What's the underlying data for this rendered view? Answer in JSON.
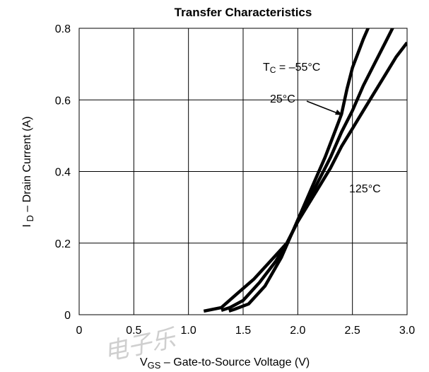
{
  "chart_data": {
    "type": "line",
    "title": "Transfer Characteristics",
    "xlabel": "V_GS – Gate-to-Source Voltage (V)",
    "ylabel": "I_D – Drain Current (A)",
    "xlim": [
      0,
      3.0
    ],
    "ylim": [
      0,
      0.8
    ],
    "x_ticks": [
      "0",
      "0.5",
      "1.0",
      "1.5",
      "2.0",
      "2.5",
      "3.0"
    ],
    "y_ticks": [
      "0",
      "0.2",
      "0.4",
      "0.6",
      "0.8"
    ],
    "x_tick_values": [
      0,
      0.5,
      1.0,
      1.5,
      2.0,
      2.5,
      3.0
    ],
    "y_tick_values": [
      0,
      0.2,
      0.4,
      0.6,
      0.8
    ],
    "grid": true,
    "series": [
      {
        "name": "TC = –55°C",
        "x": [
          1.37,
          1.42,
          1.55,
          1.7,
          1.85,
          1.95,
          2.05,
          2.15,
          2.25,
          2.35,
          2.4,
          2.45,
          2.5,
          2.6,
          2.7
        ],
        "y": [
          0.01,
          0.015,
          0.03,
          0.08,
          0.16,
          0.23,
          0.3,
          0.37,
          0.44,
          0.52,
          0.56,
          0.63,
          0.69,
          0.77,
          0.84
        ]
      },
      {
        "name": "25°C",
        "x": [
          1.3,
          1.38,
          1.5,
          1.65,
          1.8,
          1.9,
          2.0,
          2.1,
          2.2,
          2.3,
          2.4,
          2.5,
          2.6,
          2.7,
          2.8,
          2.9
        ],
        "y": [
          0.012,
          0.02,
          0.04,
          0.09,
          0.15,
          0.2,
          0.26,
          0.32,
          0.38,
          0.44,
          0.51,
          0.57,
          0.64,
          0.7,
          0.76,
          0.82
        ]
      },
      {
        "name": "125°C",
        "x": [
          1.14,
          1.3,
          1.45,
          1.6,
          1.75,
          1.9,
          2.0,
          2.1,
          2.2,
          2.3,
          2.4,
          2.5,
          2.6,
          2.7,
          2.8,
          2.9,
          3.0
        ],
        "y": [
          0.01,
          0.02,
          0.06,
          0.1,
          0.15,
          0.2,
          0.26,
          0.31,
          0.36,
          0.41,
          0.47,
          0.52,
          0.57,
          0.62,
          0.67,
          0.72,
          0.76
        ]
      }
    ],
    "annotations": [
      {
        "text_main": "T",
        "text_sub": "C",
        "text_rest": " = –55°C"
      },
      {
        "text": "25°C"
      },
      {
        "text": "125°C"
      }
    ],
    "colors": {
      "line": "#000000",
      "grid": "#000000",
      "background": "#ffffff",
      "watermark": "#cfcfcf"
    },
    "watermark": "电子乐"
  }
}
